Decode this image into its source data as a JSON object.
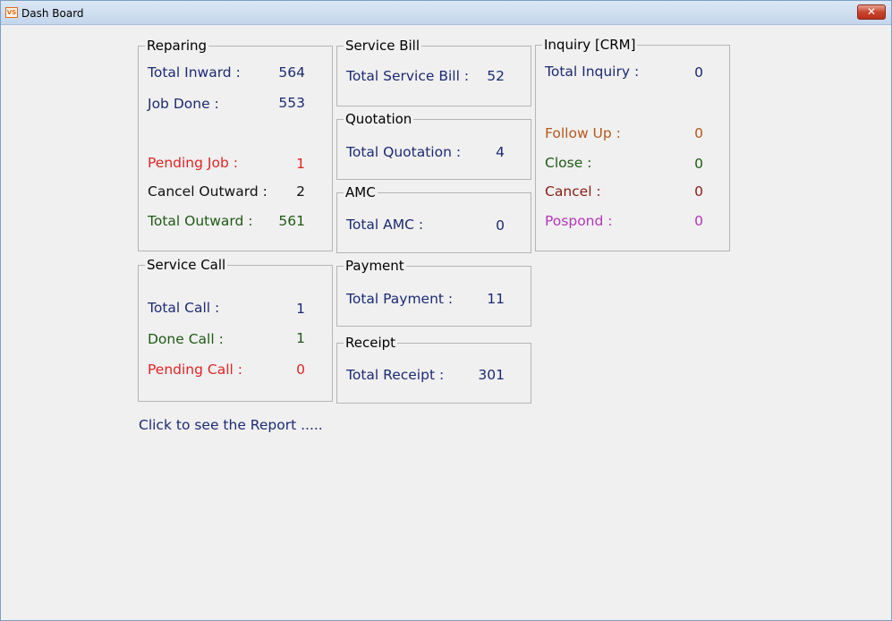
{
  "window": {
    "title": "Dash Board",
    "icon": "app-icon",
    "close_label": "✕"
  },
  "reparing": {
    "title": "Reparing",
    "total_inward_label": "Total Inward :",
    "total_inward": "564",
    "job_done_label": "Job Done :",
    "job_done": "553",
    "pending_job_label": "Pending Job :",
    "pending_job": "1",
    "cancel_outward_label": "Cancel Outward :",
    "cancel_outward": "2",
    "total_outward_label": "Total Outward :",
    "total_outward": "561"
  },
  "service_call": {
    "title": "Service Call",
    "total_call_label": "Total Call :",
    "total_call": "1",
    "done_call_label": "Done Call :",
    "done_call": "1",
    "pending_call_label": "Pending Call :",
    "pending_call": "0"
  },
  "service_bill": {
    "title": "Service Bill",
    "label": "Total Service Bill :",
    "value": "52"
  },
  "quotation": {
    "title": "Quotation",
    "label": "Total Quotation :",
    "value": "4"
  },
  "amc": {
    "title": "AMC",
    "label": "Total AMC :",
    "value": "0"
  },
  "payment": {
    "title": "Payment",
    "label": "Total Payment :",
    "value": "11"
  },
  "receipt": {
    "title": "Receipt",
    "label": "Total Receipt :",
    "value": "301"
  },
  "inquiry": {
    "title": "Inquiry [CRM]",
    "total_label": "Total Inquiry :",
    "total": "0",
    "follow_up_label": "Follow Up :",
    "follow_up": "0",
    "close_label": "Close :",
    "close": "0",
    "cancel_label": "Cancel :",
    "cancel": "0",
    "pospond_label": "Pospond :",
    "pospond": "0"
  },
  "report_link": "Click to see the Report .....",
  "colors": {
    "navy": "#1c2a72",
    "red": "#e02424",
    "green": "#1f5a14",
    "orange": "#b5581c",
    "maroon": "#8a1c14",
    "purple": "#b236b8"
  }
}
